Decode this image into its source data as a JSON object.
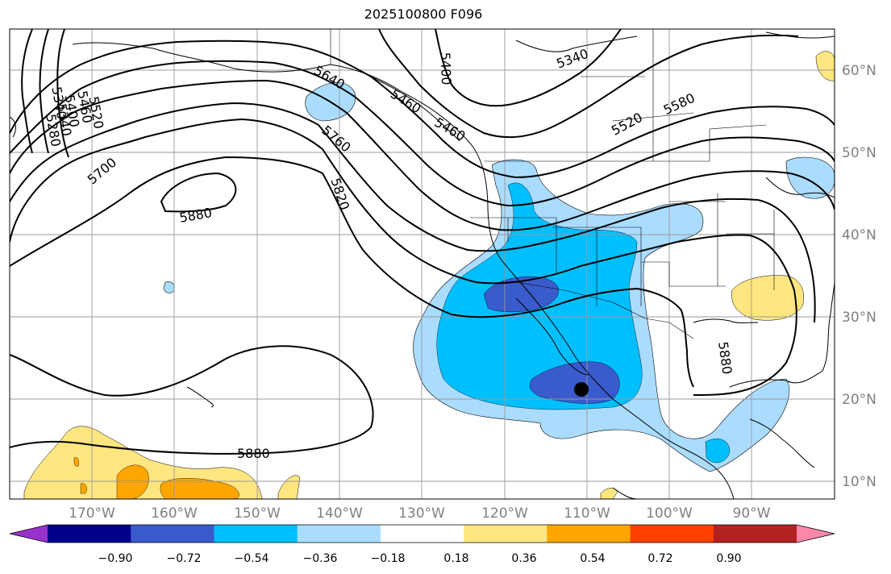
{
  "title": "2025100800 F096",
  "lat_labels": [
    "60°N",
    "50°N",
    "40°N",
    "30°N",
    "20°N",
    "10°N"
  ],
  "lon_labels": [
    "170°W",
    "160°W",
    "150°W",
    "140°W",
    "130°W",
    "120°W",
    "110°W",
    "100°W",
    "90°W"
  ],
  "contour_labels": [
    "5340",
    "5400",
    "5460",
    "5520",
    "5580",
    "5640",
    "5700",
    "5760",
    "5820",
    "5880",
    "5880",
    "5880",
    "5280",
    "5340",
    "5400",
    "5460",
    "5520",
    "5340",
    "5460"
  ],
  "colorbar": {
    "ticks": [
      "−0.90",
      "−0.72",
      "−0.54",
      "−0.36",
      "−0.18",
      "0.18",
      "0.36",
      "0.54",
      "0.72",
      "0.90"
    ],
    "colors": [
      "#9932cc",
      "#00008b",
      "#3a5bcc",
      "#00bfff",
      "#aadcff",
      "#ffffff",
      "#ffe680",
      "#ffa500",
      "#ff4000",
      "#b22222",
      "#ff88aa"
    ]
  },
  "colors": {
    "dark_blue": "#3a5bcc",
    "mid_blue": "#00bfff",
    "light_blue": "#aadcff",
    "yellow": "#ffe680",
    "orange": "#ffa500"
  }
}
